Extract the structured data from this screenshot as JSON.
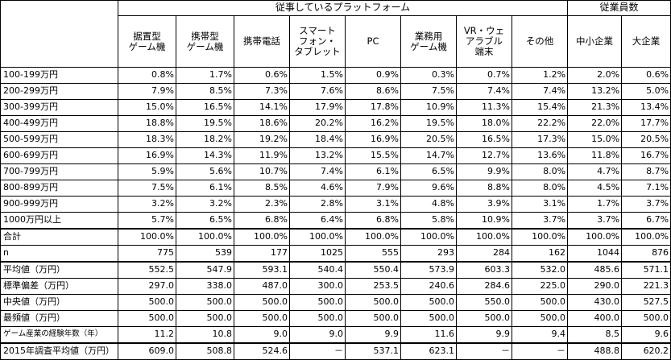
{
  "header": {
    "group_platform": "従事しているプラットフォーム",
    "group_company": "従業員数",
    "columns": [
      "据置型\nゲーム機",
      "携帯型\nゲーム機",
      "携帯電話",
      "スマート\nフォン・\nタブレット",
      "PC",
      "業務用\nゲーム機",
      "VR・ウェ\nアラブル\n端末",
      "その他",
      "中小企業",
      "大企業"
    ]
  },
  "rows": [
    {
      "label": "100-199万円",
      "values": [
        "0.8%",
        "1.7%",
        "0.6%",
        "1.5%",
        "0.9%",
        "0.3%",
        "0.7%",
        "1.2%",
        "2.0%",
        "0.6%"
      ]
    },
    {
      "label": "200-299万円",
      "values": [
        "7.9%",
        "8.5%",
        "7.3%",
        "7.6%",
        "8.6%",
        "7.5%",
        "7.4%",
        "7.4%",
        "13.2%",
        "5.0%"
      ]
    },
    {
      "label": "300-399万円",
      "values": [
        "15.0%",
        "16.5%",
        "14.1%",
        "17.9%",
        "17.8%",
        "10.9%",
        "11.3%",
        "15.4%",
        "21.3%",
        "13.4%"
      ]
    },
    {
      "label": "400-499万円",
      "values": [
        "18.8%",
        "19.5%",
        "18.6%",
        "20.2%",
        "16.2%",
        "19.5%",
        "18.0%",
        "22.2%",
        "22.0%",
        "17.7%"
      ]
    },
    {
      "label": "500-599万円",
      "values": [
        "18.3%",
        "18.2%",
        "19.2%",
        "18.4%",
        "16.9%",
        "20.5%",
        "16.5%",
        "17.3%",
        "15.0%",
        "20.5%"
      ]
    },
    {
      "label": "600-699万円",
      "values": [
        "16.9%",
        "14.3%",
        "11.9%",
        "13.2%",
        "15.5%",
        "14.7%",
        "12.7%",
        "13.6%",
        "11.8%",
        "16.7%"
      ]
    },
    {
      "label": "700-799万円",
      "values": [
        "5.9%",
        "5.6%",
        "10.7%",
        "7.4%",
        "6.1%",
        "6.5%",
        "9.9%",
        "8.0%",
        "4.7%",
        "8.7%"
      ]
    },
    {
      "label": "800-899万円",
      "values": [
        "7.5%",
        "6.1%",
        "8.5%",
        "4.6%",
        "7.9%",
        "9.6%",
        "8.8%",
        "8.0%",
        "4.5%",
        "7.1%"
      ]
    },
    {
      "label": "900-999万円",
      "values": [
        "3.2%",
        "3.2%",
        "2.3%",
        "2.8%",
        "3.1%",
        "4.8%",
        "3.9%",
        "3.1%",
        "1.7%",
        "3.7%"
      ]
    },
    {
      "label": "1000万円以上",
      "values": [
        "5.7%",
        "6.5%",
        "6.8%",
        "6.4%",
        "6.8%",
        "5.8%",
        "10.9%",
        "3.7%",
        "3.7%",
        "6.7%"
      ]
    },
    {
      "label": "合計",
      "values": [
        "100.0%",
        "100.0%",
        "100.0%",
        "100.0%",
        "100.0%",
        "100.0%",
        "100.0%",
        "100.0%",
        "100.0%",
        "100.0%"
      ]
    },
    {
      "label": "n",
      "values": [
        "775",
        "539",
        "177",
        "1025",
        "555",
        "293",
        "284",
        "162",
        "1044",
        "876"
      ]
    }
  ],
  "stats": [
    {
      "label": "平均値（万円）",
      "values": [
        "552.5",
        "547.9",
        "593.1",
        "540.4",
        "550.4",
        "573.9",
        "603.3",
        "532.0",
        "485.6",
        "571.1"
      ]
    },
    {
      "label": "標準偏差（万円）",
      "values": [
        "297.0",
        "338.0",
        "487.0",
        "300.0",
        "253.5",
        "240.6",
        "284.6",
        "225.0",
        "290.0",
        "221.3"
      ]
    },
    {
      "label": "中央値（万円）",
      "values": [
        "500.0",
        "500.0",
        "500.0",
        "500.0",
        "500.0",
        "500.0",
        "550.0",
        "500.0",
        "430.0",
        "527.5"
      ]
    },
    {
      "label": "最頻値（万円）",
      "values": [
        "500.0",
        "500.0",
        "500.0",
        "500.0",
        "500.0",
        "500.0",
        "500.0",
        "500.0",
        "400.0",
        "500.0"
      ]
    },
    {
      "label": "ゲーム産業の経験年数（年）",
      "values": [
        "11.2",
        "10.8",
        "9.0",
        "9.0",
        "9.9",
        "11.6",
        "9.9",
        "9.4",
        "8.5",
        "9.6"
      ],
      "small": true
    }
  ],
  "last": {
    "label": "2015年調査平均値（万円）",
    "values": [
      "609.0",
      "508.8",
      "524.6",
      "－",
      "537.1",
      "623.1",
      "－",
      "－",
      "488.8",
      "620.2"
    ]
  }
}
